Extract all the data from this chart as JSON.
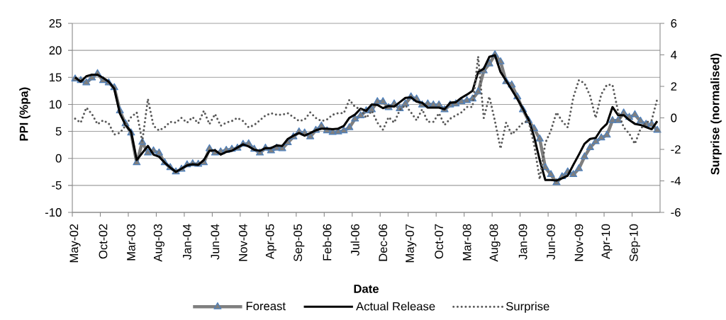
{
  "chart_data": {
    "type": "line",
    "xlabel": "Date",
    "ylabel": "PPI (%pa)",
    "y2label": "Surprise (normalised)",
    "categories": [
      "May-02",
      null,
      null,
      null,
      null,
      "Oct-02",
      null,
      null,
      null,
      null,
      "Mar-03",
      null,
      null,
      null,
      null,
      "Aug-03",
      null,
      null,
      null,
      null,
      "Jan-04",
      null,
      null,
      null,
      null,
      "Jun-04",
      null,
      null,
      null,
      null,
      "Nov-04",
      null,
      null,
      null,
      null,
      "Apr-05",
      null,
      null,
      null,
      null,
      "Sep-05",
      null,
      null,
      null,
      null,
      "Feb-06",
      null,
      null,
      null,
      null,
      "Jul-06",
      null,
      null,
      null,
      null,
      "Dec-06",
      null,
      null,
      null,
      null,
      "May-07",
      null,
      null,
      null,
      null,
      "Oct-07",
      null,
      null,
      null,
      null,
      "Mar-08",
      null,
      null,
      null,
      null,
      "Aug-08",
      null,
      null,
      null,
      null,
      "Jan-09",
      null,
      null,
      null,
      null,
      "Jun-09",
      null,
      null,
      null,
      null,
      "Nov-09",
      null,
      null,
      null,
      null,
      "Apr-10",
      null,
      null,
      null,
      null,
      "Sep-10",
      null,
      null,
      null,
      null
    ],
    "series": [
      {
        "name": "Foreast",
        "color": "#7f7f7f",
        "marker": "triangle",
        "values": [
          14.7,
          14.4,
          14.0,
          14.9,
          15.7,
          14.4,
          14.0,
          13.1,
          8.8,
          6.4,
          4.7,
          -0.8,
          3.0,
          1.0,
          1.4,
          1.0,
          -0.8,
          -1.7,
          -2.5,
          -2.0,
          -1.2,
          -1.0,
          -1.1,
          -0.8,
          1.8,
          1.0,
          1.2,
          1.5,
          1.7,
          1.9,
          2.6,
          2.7,
          1.7,
          1.0,
          1.9,
          1.4,
          1.9,
          1.8,
          2.9,
          4.0,
          4.9,
          4.7,
          4.0,
          5.2,
          6.0,
          5.1,
          4.8,
          4.9,
          5.1,
          5.7,
          7.3,
          7.9,
          8.8,
          9.0,
          10.5,
          10.5,
          9.4,
          10.1,
          9.2,
          10.1,
          11.4,
          11.0,
          9.9,
          10.1,
          9.9,
          9.9,
          9.0,
          9.9,
          10.1,
          10.5,
          10.7,
          11.0,
          12.3,
          16.2,
          17.5,
          19.2,
          17.9,
          14.2,
          13.6,
          11.4,
          9.0,
          7.0,
          5.5,
          3.6,
          -1.7,
          -3.0,
          -4.5,
          -3.4,
          -2.5,
          -3.0,
          -1.9,
          0.3,
          2.0,
          3.1,
          3.8,
          4.3,
          7.0,
          7.0,
          8.4,
          7.6,
          8.1,
          6.9,
          6.3,
          6.3,
          5.2
        ]
      },
      {
        "name": "Actual Release",
        "color": "#000000",
        "values": [
          15.0,
          14.2,
          15.2,
          15.5,
          15.5,
          14.9,
          14.2,
          12.9,
          8.3,
          6.2,
          4.9,
          -0.3,
          1.0,
          2.3,
          0.7,
          0.3,
          -0.8,
          -1.7,
          -2.5,
          -1.9,
          -1.3,
          -1.1,
          -1.2,
          -0.3,
          1.4,
          1.5,
          0.7,
          1.2,
          1.4,
          2.0,
          2.6,
          2.2,
          1.6,
          1.4,
          1.9,
          1.9,
          2.4,
          2.3,
          3.6,
          4.2,
          4.7,
          4.2,
          4.7,
          5.2,
          5.5,
          5.5,
          5.4,
          5.5,
          6.0,
          7.5,
          8.1,
          9.2,
          8.8,
          10.0,
          9.9,
          9.3,
          9.7,
          9.6,
          10.4,
          11.2,
          11.3,
          10.5,
          10.3,
          9.4,
          9.4,
          9.4,
          9.1,
          10.3,
          10.4,
          11.2,
          11.8,
          12.5,
          16.0,
          16.6,
          18.8,
          19.1,
          16.0,
          14.4,
          12.7,
          11.0,
          9.2,
          7.2,
          4.0,
          -0.3,
          -4.0,
          -4.0,
          -4.1,
          -3.7,
          -3.2,
          -1.2,
          0.7,
          2.7,
          3.6,
          3.8,
          5.4,
          6.4,
          9.5,
          8.0,
          8.0,
          7.1,
          6.4,
          6.2,
          5.8,
          5.4,
          6.9
        ]
      },
      {
        "name": "Surprise",
        "color": "#595959",
        "axis": "y2",
        "line_style": "dotted",
        "values": [
          -0.05,
          -0.3,
          0.65,
          0.25,
          -0.4,
          -0.15,
          -0.35,
          -1.05,
          -0.95,
          -0.5,
          0.05,
          0.35,
          -1.5,
          1.2,
          -0.5,
          -0.8,
          -0.6,
          -0.25,
          -0.3,
          0.0,
          -0.3,
          0.05,
          -0.35,
          0.45,
          -0.4,
          0.25,
          -0.5,
          -0.3,
          -0.2,
          0.0,
          -0.2,
          -0.6,
          -0.45,
          -0.15,
          0.15,
          0.3,
          0.2,
          0.2,
          0.3,
          0.05,
          -0.2,
          -0.1,
          0.35,
          0.0,
          -0.2,
          -0.1,
          0.2,
          0.3,
          0.3,
          1.15,
          0.7,
          0.55,
          0.0,
          0.45,
          -0.3,
          -0.75,
          0.05,
          -0.3,
          0.5,
          0.8,
          0.35,
          -0.15,
          0.55,
          -0.25,
          -0.25,
          0.3,
          -0.45,
          -0.05,
          0.15,
          0.35,
          0.7,
          0.7,
          3.9,
          0.0,
          1.35,
          -0.2,
          -1.95,
          -0.3,
          -1.05,
          -0.7,
          -0.3,
          -0.2,
          -1.7,
          -3.9,
          -1.6,
          -0.8,
          0.35,
          -0.2,
          -0.6,
          1.3,
          2.4,
          2.2,
          1.4,
          0.0,
          1.5,
          2.1,
          2.1,
          0.4,
          -0.6,
          -1.0,
          -1.65,
          -0.7,
          -0.3,
          -0.15,
          1.2
        ]
      }
    ],
    "ylim": [
      -10,
      25
    ],
    "yticks": [
      -10,
      -5,
      0,
      5,
      10,
      15,
      20,
      25
    ],
    "y2lim": [
      -6,
      6
    ],
    "y2ticks": [
      -6,
      -4,
      -2,
      0,
      2,
      4,
      6
    ],
    "grid": "y",
    "legend": "bottom"
  }
}
